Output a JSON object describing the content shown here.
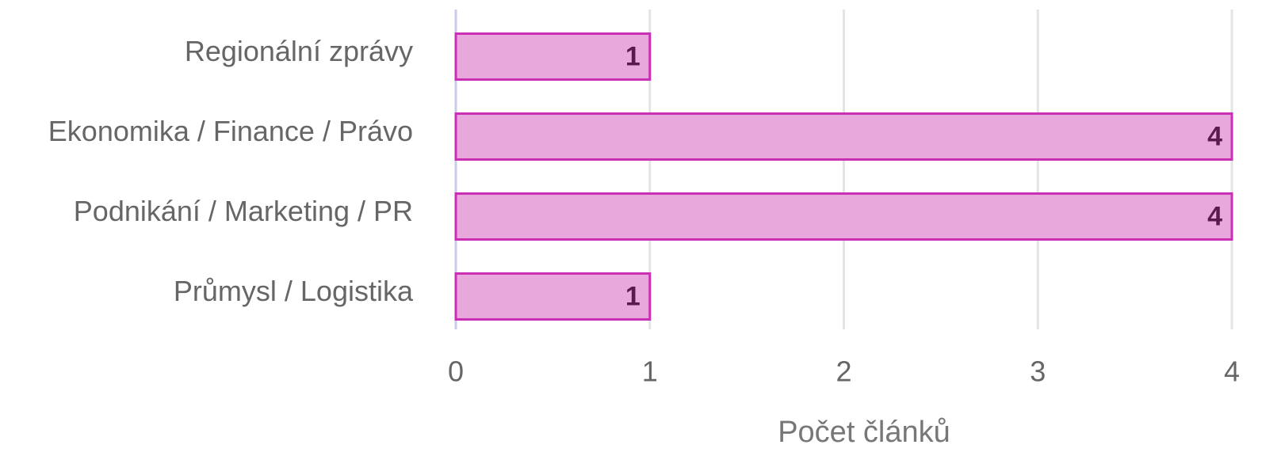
{
  "chart_data": {
    "type": "bar",
    "orientation": "horizontal",
    "categories": [
      "Regionální zprávy",
      "Ekonomika / Finance / Právo",
      "Podnikání / Marketing / PR",
      "Průmysl / Logistika"
    ],
    "values": [
      1,
      4,
      4,
      1
    ],
    "color": "#e8a8dc",
    "edge_color": "#c930b4",
    "xlim": [
      0,
      4
    ],
    "xticks": [
      0,
      1,
      2,
      3,
      4
    ],
    "xlabel": "Počet článků",
    "grid": true
  }
}
